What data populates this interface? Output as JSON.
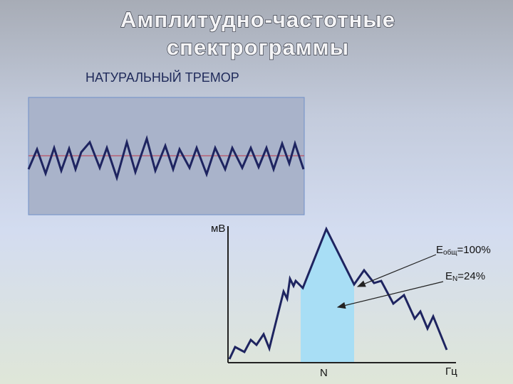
{
  "title": {
    "lines": [
      "Амплитудно-частотные",
      "спектрограммы"
    ]
  },
  "subtitle": "НАТУРАЛЬНЫЙ ТРЕМОР",
  "spectrum": {
    "y_axis_label": "мВ",
    "x_axis_label": "Гц",
    "band_label": "N",
    "total_energy": {
      "symbol": "E",
      "subscript": "общ",
      "value": "=100%"
    },
    "band_energy": {
      "symbol": "E",
      "subscript": "N",
      "value": "=24%"
    }
  }
}
